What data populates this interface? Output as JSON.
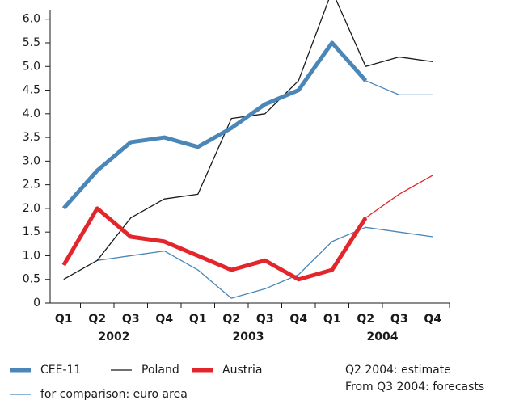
{
  "chart_data": {
    "type": "line",
    "categories": [
      "Q1",
      "Q2",
      "Q3",
      "Q4",
      "Q1",
      "Q2",
      "Q3",
      "Q4",
      "Q1",
      "Q2",
      "Q3",
      "Q4"
    ],
    "year_labels": [
      "2002",
      "2003",
      "2004"
    ],
    "ylim": [
      0,
      6.2
    ],
    "yticks": [
      0,
      0.5,
      {
        "value": 1,
        "label": "1.0"
      },
      1.5,
      {
        "value": 2,
        "label": "2.0"
      },
      2.5,
      {
        "value": 3,
        "label": "3.0"
      },
      3.5,
      {
        "value": 4,
        "label": "4.0"
      },
      4.5,
      {
        "value": 5,
        "label": "5.0"
      },
      5.5,
      {
        "value": 6,
        "label": "6.0"
      }
    ],
    "forecast_start": 9,
    "series": [
      {
        "name": "CEE-11",
        "color": "#4a86b8",
        "width": 5,
        "values": [
          2.0,
          2.8,
          3.4,
          3.5,
          3.3,
          3.7,
          4.2,
          4.5,
          5.5,
          4.7,
          4.4,
          4.4
        ]
      },
      {
        "name": "Poland",
        "color": "#1a1a1a",
        "width": 1.3,
        "values": [
          0.5,
          0.9,
          1.8,
          2.2,
          2.3,
          3.9,
          4.0,
          4.7,
          6.6,
          5.0,
          5.2,
          5.1
        ]
      },
      {
        "name": "Austria",
        "color": "#e3262b",
        "width": 5,
        "values": [
          0.8,
          2.0,
          1.4,
          1.3,
          1.0,
          0.7,
          0.9,
          0.5,
          0.7,
          1.8,
          2.3,
          2.7
        ]
      },
      {
        "name": "for comparison: euro area",
        "color": "#4a86b8",
        "width": 1.3,
        "values": [
          null,
          0.9,
          1.0,
          1.1,
          0.7,
          0.1,
          0.3,
          0.6,
          1.3,
          1.6,
          1.5,
          1.4
        ]
      }
    ],
    "notes": [
      "Q2 2004: estimate",
      "From Q3 2004: forecasts"
    ]
  }
}
